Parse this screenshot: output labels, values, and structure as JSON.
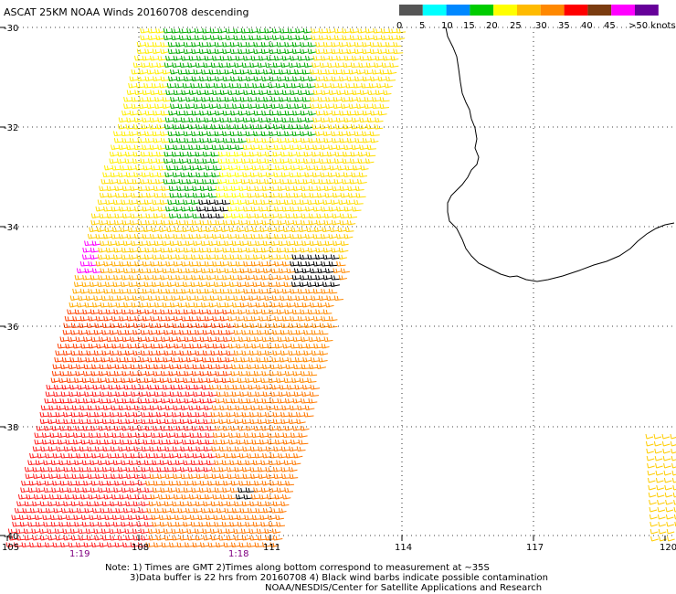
{
  "title": "ASCAT 25KM NOAA Winds 20160708 descending",
  "legend": {
    "unit": "knots",
    "labels": [
      "0",
      "5",
      "10",
      "15",
      "20",
      "25",
      "30",
      "35",
      "40",
      "45",
      ">50 knots"
    ],
    "colors": [
      "#555555",
      "#00ffff",
      "#0088ff",
      "#00cc00",
      "#ffff00",
      "#ffbb00",
      "#ff8800",
      "#ff0000",
      "#7a3b10",
      "#ff00ff",
      "#660099"
    ]
  },
  "axes": {
    "lat_labels": [
      "-30",
      "-32",
      "-34",
      "-36",
      "-38",
      "-40"
    ],
    "lon_labels": [
      "105",
      "108",
      "111",
      "114",
      "117",
      "120"
    ]
  },
  "pass_times": [
    "1:19",
    "1:18"
  ],
  "notes": [
    "Note: 1) Times are GMT 2)Times along bottom correspond to measurement at ~35S",
    "3)Data buffer is 22 hrs from 20160708 4) Black wind barbs indicate possible contamination",
    "NOAA/NESDIS/Center for Satellite Applications and Research"
  ],
  "colors": {
    "coastline": "#000000",
    "grid": "#000000",
    "contamination": "#000000"
  }
}
